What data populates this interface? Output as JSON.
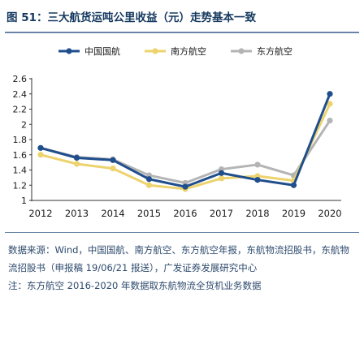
{
  "title": "图 51：三大航货运吨公里收益（元）走势基本一致",
  "source": "数据来源：Wind，中国国航、南方航空、东方航空年报，东航物流招股书，东航物流招股书（申报稿 19/06/21 报送），广发证券发展研究中心",
  "note": "注：东方航空 2016-2020 年数据取东航物流全货机业务数据",
  "colors": {
    "rule": "#6a84a6",
    "text": "#15395f"
  },
  "chart_data": {
    "type": "line",
    "title": "",
    "xlabel": "",
    "ylabel": "",
    "categories": [
      "2012",
      "2013",
      "2014",
      "2015",
      "2016",
      "2017",
      "2018",
      "2019",
      "2020"
    ],
    "ylim": [
      1.0,
      2.6
    ],
    "yticks": [
      "1",
      "1.2",
      "1.4",
      "1.6",
      "1.8",
      "2",
      "2.2",
      "2.4",
      "2.6"
    ],
    "grid": false,
    "legend_position": "top",
    "series": [
      {
        "name": "中国国航",
        "color": "#1f4e8c",
        "values": [
          1.69,
          1.56,
          1.53,
          1.28,
          1.18,
          1.36,
          1.27,
          1.2,
          2.4
        ]
      },
      {
        "name": "南方航空",
        "color": "#ecd36e",
        "values": [
          1.6,
          1.48,
          1.42,
          1.2,
          1.15,
          1.29,
          1.32,
          1.26,
          2.27
        ]
      },
      {
        "name": "东方航空",
        "color": "#b4b4b4",
        "values": [
          1.69,
          1.57,
          1.54,
          1.33,
          1.23,
          1.41,
          1.47,
          1.33,
          2.05
        ]
      }
    ]
  }
}
